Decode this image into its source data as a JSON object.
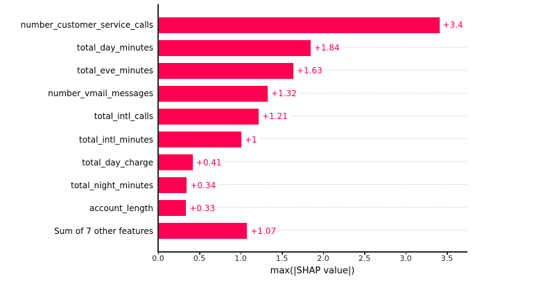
{
  "chart_data": {
    "type": "bar",
    "orientation": "horizontal",
    "title": "",
    "xlabel": "max(|SHAP value|)",
    "ylabel": "",
    "categories": [
      "number_customer_service_calls",
      "total_day_minutes",
      "total_eve_minutes",
      "number_vmail_messages",
      "total_intl_calls",
      "total_intl_minutes",
      "total_day_charge",
      "total_night_minutes",
      "account_length",
      "Sum of 7 other features"
    ],
    "values": [
      3.4,
      1.84,
      1.63,
      1.32,
      1.21,
      1.0,
      0.41,
      0.34,
      0.33,
      1.07
    ],
    "value_labels": [
      "+3.4",
      "+1.84",
      "+1.63",
      "+1.32",
      "+1.21",
      "+1",
      "+0.41",
      "+0.34",
      "+0.33",
      "+1.07"
    ],
    "x_ticks": [
      "0.0",
      "0.5",
      "1.0",
      "1.5",
      "2.0",
      "2.5",
      "3.0",
      "3.5"
    ],
    "xlim": [
      0,
      3.74
    ],
    "grid": "dotted horizontal leader lines per bar",
    "legend": null,
    "bar_color": "#ff0051",
    "value_label_color": "#ff0051",
    "leader_line_color": "#cccccc",
    "axis_color": "#262626"
  }
}
